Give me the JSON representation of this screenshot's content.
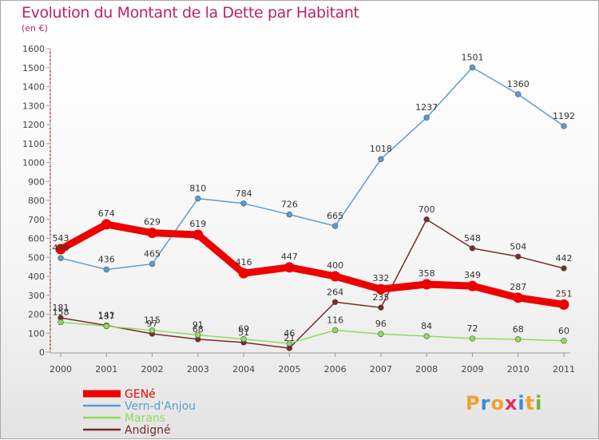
{
  "title": "Evolution du Montant de la Dette par Habitant",
  "subtitle": "(en €)",
  "logo": {
    "text": "Proxiti",
    "letters": [
      {
        "ch": "P",
        "color": "#f0a030"
      },
      {
        "ch": "r",
        "color": "#3a8fd0"
      },
      {
        "ch": "o",
        "color": "#f0a030"
      },
      {
        "ch": "x",
        "color": "#e03060"
      },
      {
        "ch": "i",
        "color": "#3a8fd0"
      },
      {
        "ch": "t",
        "color": "#f0a030"
      },
      {
        "ch": "i",
        "color": "#70b830"
      }
    ]
  },
  "chart_data": {
    "type": "line",
    "title": "Evolution du Montant de la Dette par Habitant",
    "subtitle": "(en €)",
    "x": [
      "2000",
      "2001",
      "2002",
      "2003",
      "2004",
      "2005",
      "2006",
      "2007",
      "2008",
      "2009",
      "2010",
      "2011"
    ],
    "ylim": [
      0,
      1600
    ],
    "yticks": [
      0,
      100,
      200,
      300,
      400,
      500,
      600,
      700,
      800,
      900,
      1000,
      1100,
      1200,
      1300,
      1400,
      1500,
      1600
    ],
    "grid": false,
    "legend_position": "bottom-left",
    "series": [
      {
        "name": "GENé",
        "color": "#ee0000",
        "values": [
          543,
          674,
          629,
          619,
          416,
          447,
          400,
          332,
          358,
          349,
          287,
          251
        ]
      },
      {
        "name": "Vern-d'Anjou",
        "color": "#5b9bd5",
        "values": [
          496,
          436,
          465,
          810,
          784,
          726,
          665,
          1018,
          1237,
          1501,
          1360,
          1192
        ]
      },
      {
        "name": "Marans",
        "color": "#8fdc5a",
        "values": [
          158,
          137,
          115,
          91,
          69,
          46,
          116,
          96,
          84,
          72,
          68,
          60
        ]
      },
      {
        "name": "Andigné",
        "color": "#7a2a2a",
        "values": [
          181,
          141,
          97,
          68,
          51,
          21,
          264,
          235,
          700,
          548,
          504,
          442
        ]
      }
    ]
  }
}
